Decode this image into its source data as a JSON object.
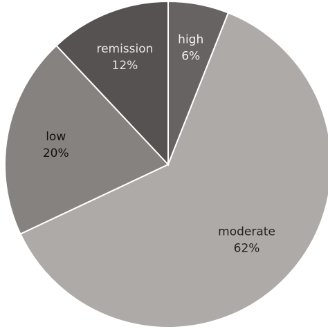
{
  "chart_data": {
    "type": "pie",
    "slices": [
      {
        "label": "high",
        "percent_label": "6%",
        "value": 6,
        "color": "#676362"
      },
      {
        "label": "moderate",
        "percent_label": "62%",
        "value": 62,
        "color": "#aeaaa8"
      },
      {
        "label": "low",
        "percent_label": "20%",
        "value": 20,
        "color": "#86827f"
      },
      {
        "label": "remission",
        "percent_label": "12%",
        "value": 12,
        "color": "#565251"
      }
    ],
    "label_colors": {
      "high": "#f2f2f2",
      "moderate": "#222222",
      "low": "#111111",
      "remission": "#e6e6e6"
    },
    "stroke_color": "#ffffff"
  }
}
